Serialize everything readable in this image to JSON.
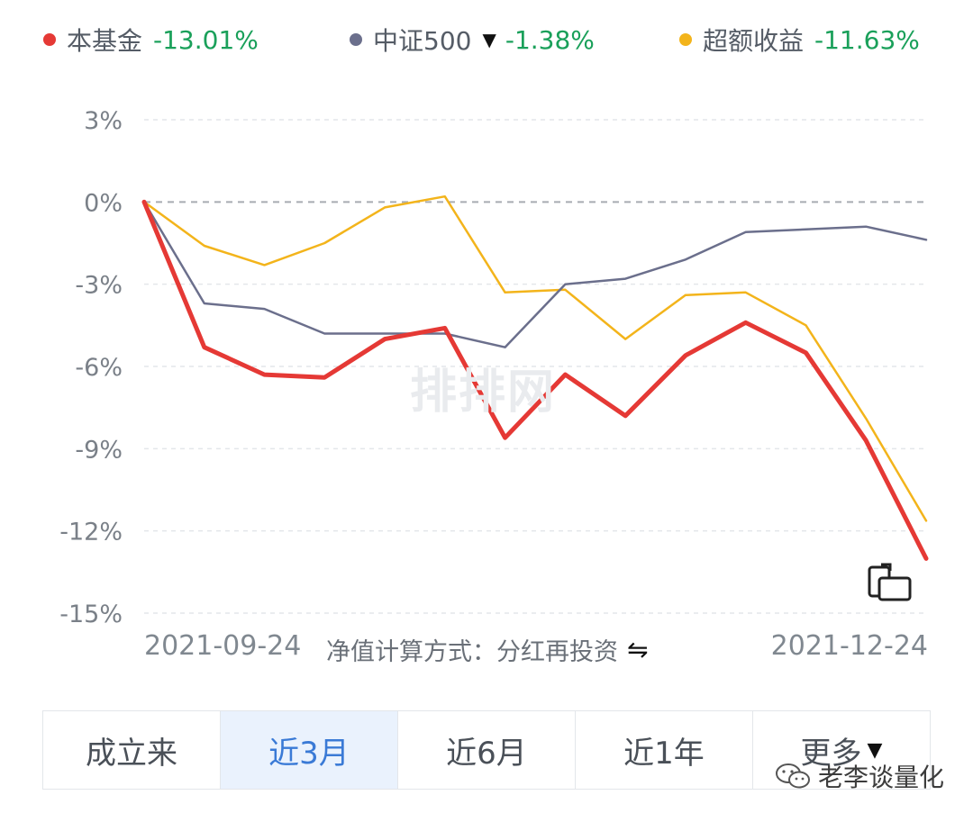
{
  "legend": [
    {
      "name": "本基金",
      "value": "-13.01%",
      "color": "#e53935",
      "caret": ""
    },
    {
      "name": "中证500",
      "value": "-1.38%",
      "color": "#6b6f8c",
      "caret": "▼"
    },
    {
      "name": "超额收益",
      "value": "-11.63%",
      "color": "#f3b41b",
      "caret": ""
    }
  ],
  "footer": {
    "start_date": "2021-09-24",
    "end_date": "2021-12-24",
    "method_label": "净值计算方式：分红再投资",
    "swap_icon": "⇋"
  },
  "tabs": [
    {
      "label": "成立来",
      "active": false
    },
    {
      "label": "近3月",
      "active": true
    },
    {
      "label": "近6月",
      "active": false
    },
    {
      "label": "近1年",
      "active": false
    },
    {
      "label": "更多",
      "active": false,
      "caret": "▼"
    }
  ],
  "background_watermark": "排排网",
  "watermark": {
    "text": "老李谈量化",
    "icon": "wechat-icon"
  },
  "chart_data": {
    "type": "line",
    "ylim": [
      -15,
      3
    ],
    "ytick_values": [
      3,
      0,
      -3,
      -6,
      -9,
      -12,
      -15
    ],
    "ytick_labels": [
      "3%",
      "0%",
      "-3%",
      "-6%",
      "-9%",
      "-12%",
      "-15%"
    ],
    "zero_line": "dashed",
    "grid": "dashed horizontal",
    "x_start": "2021-09-24",
    "x_end": "2021-12-24",
    "series": [
      {
        "name": "本基金",
        "color": "#e53935",
        "values": [
          0,
          -5.3,
          -6.3,
          -6.4,
          -5.0,
          -4.6,
          -8.6,
          -6.3,
          -7.8,
          -5.6,
          -4.4,
          -5.5,
          -8.7,
          -13.01
        ]
      },
      {
        "name": "中证500",
        "color": "#6b6f8c",
        "values": [
          0,
          -3.7,
          -3.9,
          -4.8,
          -4.8,
          -4.8,
          -5.3,
          -3.0,
          -2.8,
          -2.1,
          -1.1,
          -1.0,
          -0.9,
          -1.38
        ]
      },
      {
        "name": "超额收益",
        "color": "#f3b41b",
        "values": [
          0,
          -1.6,
          -2.3,
          -1.5,
          -0.2,
          0.2,
          -3.3,
          -3.2,
          -5.0,
          -3.4,
          -3.3,
          -4.5,
          -7.9,
          -11.63
        ]
      }
    ]
  }
}
